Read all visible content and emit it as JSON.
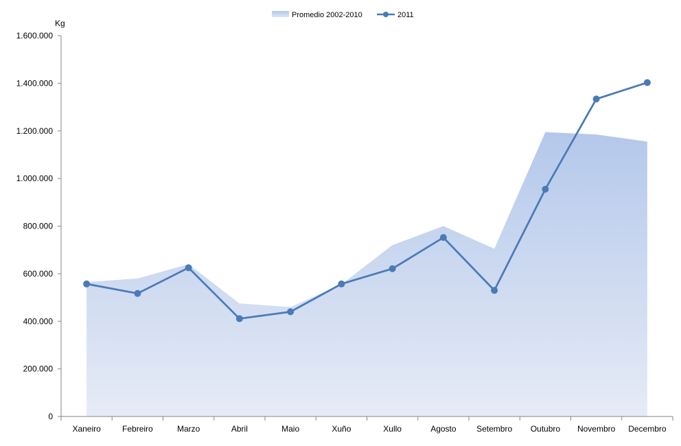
{
  "chart_data": {
    "type": "area",
    "unit_label": "Kg",
    "categories": [
      "Xaneiro",
      "Febreiro",
      "Marzo",
      "Abril",
      "Maio",
      "Xuño",
      "Xullo",
      "Agosto",
      "Setembro",
      "Outubro",
      "Novembro",
      "Decembro"
    ],
    "series": [
      {
        "name": "Promedio 2002-2010",
        "type": "area",
        "color": "#b4c8eb",
        "values": [
          565000,
          580000,
          640000,
          475000,
          460000,
          555000,
          720000,
          800000,
          705000,
          1195000,
          1185000,
          1155000
        ]
      },
      {
        "name": "2011",
        "type": "line",
        "color": "#4a7ab7",
        "values": [
          557000,
          517000,
          625000,
          411000,
          440000,
          557000,
          621000,
          752000,
          530000,
          955000,
          1334000,
          1403000
        ]
      }
    ],
    "ylim": [
      0,
      1600000
    ],
    "yticks": [
      0,
      200000,
      400000,
      600000,
      800000,
      1000000,
      1200000,
      1400000,
      1600000
    ],
    "ytick_labels": [
      "0",
      "200.000",
      "400.000",
      "600.000",
      "800.000",
      "1.000.000",
      "1.200.000",
      "1.400.000",
      "1.600.000"
    ],
    "grid": false,
    "legend_position": "top-center"
  }
}
